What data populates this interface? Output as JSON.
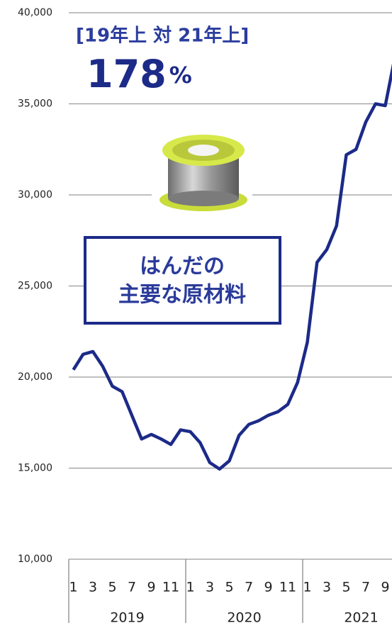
{
  "chart_data": {
    "type": "line",
    "title": "[19年上 対 21年上]",
    "headline_value": "178",
    "headline_unit": "%",
    "annotation_lines": [
      "はんだの",
      "主要な原材料"
    ],
    "categories": [
      "1",
      null,
      "3",
      null,
      "5",
      null,
      "7",
      null,
      "9",
      null,
      "11",
      null,
      "1",
      null,
      "3",
      null,
      "5",
      null,
      "7",
      null,
      "9",
      null,
      "11",
      null,
      "1",
      null,
      "3",
      null,
      "5",
      null,
      "7",
      null,
      "9",
      null
    ],
    "year_labels": [
      "2019",
      "2020",
      "2021"
    ],
    "series": [
      {
        "color": "#1c2a88",
        "values": [
          20400,
          21250,
          21400,
          20600,
          19500,
          19200,
          17900,
          16600,
          16850,
          16600,
          16300,
          17100,
          17000,
          16400,
          15300,
          14950,
          15400,
          16800,
          17400,
          17600,
          17900,
          18100,
          18500,
          19700,
          21900,
          26300,
          27000,
          28300,
          32200,
          32500,
          34000,
          35000,
          34900,
          37600
        ]
      }
    ],
    "ylim": [
      10000,
      40000
    ],
    "yticks": [
      {
        "value": 10000,
        "label": "10,000"
      },
      {
        "value": 15000,
        "label": "15,000"
      },
      {
        "value": 20000,
        "label": "20,000"
      },
      {
        "value": 25000,
        "label": "25,000"
      },
      {
        "value": 30000,
        "label": "30,000"
      },
      {
        "value": 35000,
        "label": "35,000"
      },
      {
        "value": 40000,
        "label": "40,000"
      }
    ],
    "grid": true
  }
}
